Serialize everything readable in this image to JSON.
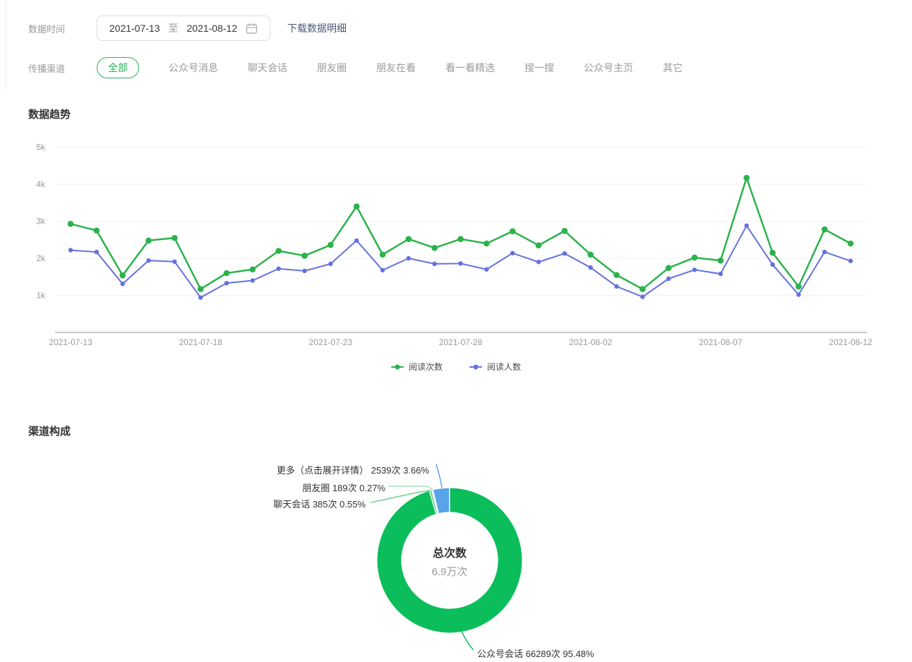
{
  "colors": {
    "line_reads": "#2bb24c",
    "line_people": "#6571df",
    "tab_active": "#2bb25a",
    "grid": "#f2f2f2",
    "axis": "#c8c8c8",
    "tick_text": "#999999"
  },
  "filters": {
    "date_label": "数据时间",
    "date_start": "2021-07-13",
    "date_separator": "至",
    "date_end": "2021-08-12",
    "download_link": "下载数据明细",
    "channel_label": "传播渠道",
    "channels": [
      "全部",
      "公众号消息",
      "聊天会话",
      "朋友圈",
      "朋友在看",
      "看一看精选",
      "搜一搜",
      "公众号主页",
      "其它"
    ],
    "active_channel": "全部"
  },
  "trend": {
    "title": "数据趋势",
    "legend": [
      "阅读次数",
      "阅读人数"
    ]
  },
  "composition": {
    "title": "渠道构成",
    "center_label": "总次数",
    "center_value": "6.9万次",
    "callouts": [
      {
        "text": "更多（点击展开详情） 2539次 3.66%"
      },
      {
        "text": "朋友圈 189次 0.27%"
      },
      {
        "text": "聊天会话 385次 0.55%"
      },
      {
        "text": "公众号会话 66289次 95.48%"
      }
    ]
  },
  "chart_data": [
    {
      "type": "line",
      "title": "数据趋势",
      "x": [
        "2021-07-13",
        "2021-07-14",
        "2021-07-15",
        "2021-07-16",
        "2021-07-17",
        "2021-07-18",
        "2021-07-19",
        "2021-07-20",
        "2021-07-21",
        "2021-07-22",
        "2021-07-23",
        "2021-07-24",
        "2021-07-25",
        "2021-07-26",
        "2021-07-27",
        "2021-07-28",
        "2021-07-29",
        "2021-07-30",
        "2021-07-31",
        "2021-08-01",
        "2021-08-02",
        "2021-08-03",
        "2021-08-04",
        "2021-08-05",
        "2021-08-06",
        "2021-08-07",
        "2021-08-08",
        "2021-08-09",
        "2021-08-10",
        "2021-08-11",
        "2021-08-12"
      ],
      "x_tick_labels": [
        "2021-07-13",
        "2021-07-18",
        "2021-07-23",
        "2021-07-28",
        "2021-08-02",
        "2021-08-07",
        "2021-08-12"
      ],
      "x_tick_every": 5,
      "y_ticks": [
        "1k",
        "2k",
        "3k",
        "4k",
        "5k"
      ],
      "ylim": [
        0,
        5000
      ],
      "grid": true,
      "legend_position": "bottom",
      "series": [
        {
          "name": "阅读次数",
          "values": [
            2930,
            2750,
            1540,
            2480,
            2550,
            1170,
            1600,
            1700,
            2200,
            2070,
            2360,
            3400,
            2100,
            2520,
            2280,
            2520,
            2400,
            2730,
            2350,
            2740,
            2100,
            1550,
            1170,
            1740,
            2020,
            1940,
            4170,
            2150,
            1240,
            2780,
            2400
          ]
        },
        {
          "name": "阅读人数",
          "values": [
            2220,
            2170,
            1310,
            1940,
            1910,
            940,
            1330,
            1400,
            1720,
            1660,
            1850,
            2480,
            1680,
            2000,
            1850,
            1860,
            1700,
            2140,
            1900,
            2130,
            1750,
            1240,
            960,
            1450,
            1690,
            1580,
            2880,
            1830,
            1020,
            2170,
            1930
          ]
        }
      ]
    },
    {
      "type": "pie",
      "title": "渠道构成",
      "donut": true,
      "center": {
        "label": "总次数",
        "value": "6.9万次"
      },
      "slices": [
        {
          "label": "公众号会话",
          "value": 66289,
          "unit": "次",
          "percent": 95.48,
          "color": "#0bbe5b"
        },
        {
          "label": "聊天会话",
          "value": 385,
          "unit": "次",
          "percent": 0.55,
          "color": "#6fcd8f"
        },
        {
          "label": "朋友圈",
          "value": 189,
          "unit": "次",
          "percent": 0.27,
          "color": "#a9e2bd"
        },
        {
          "label": "更多（点击展开详情）",
          "value": 2539,
          "unit": "次",
          "percent": 3.66,
          "color": "#59a4e9"
        }
      ]
    }
  ]
}
